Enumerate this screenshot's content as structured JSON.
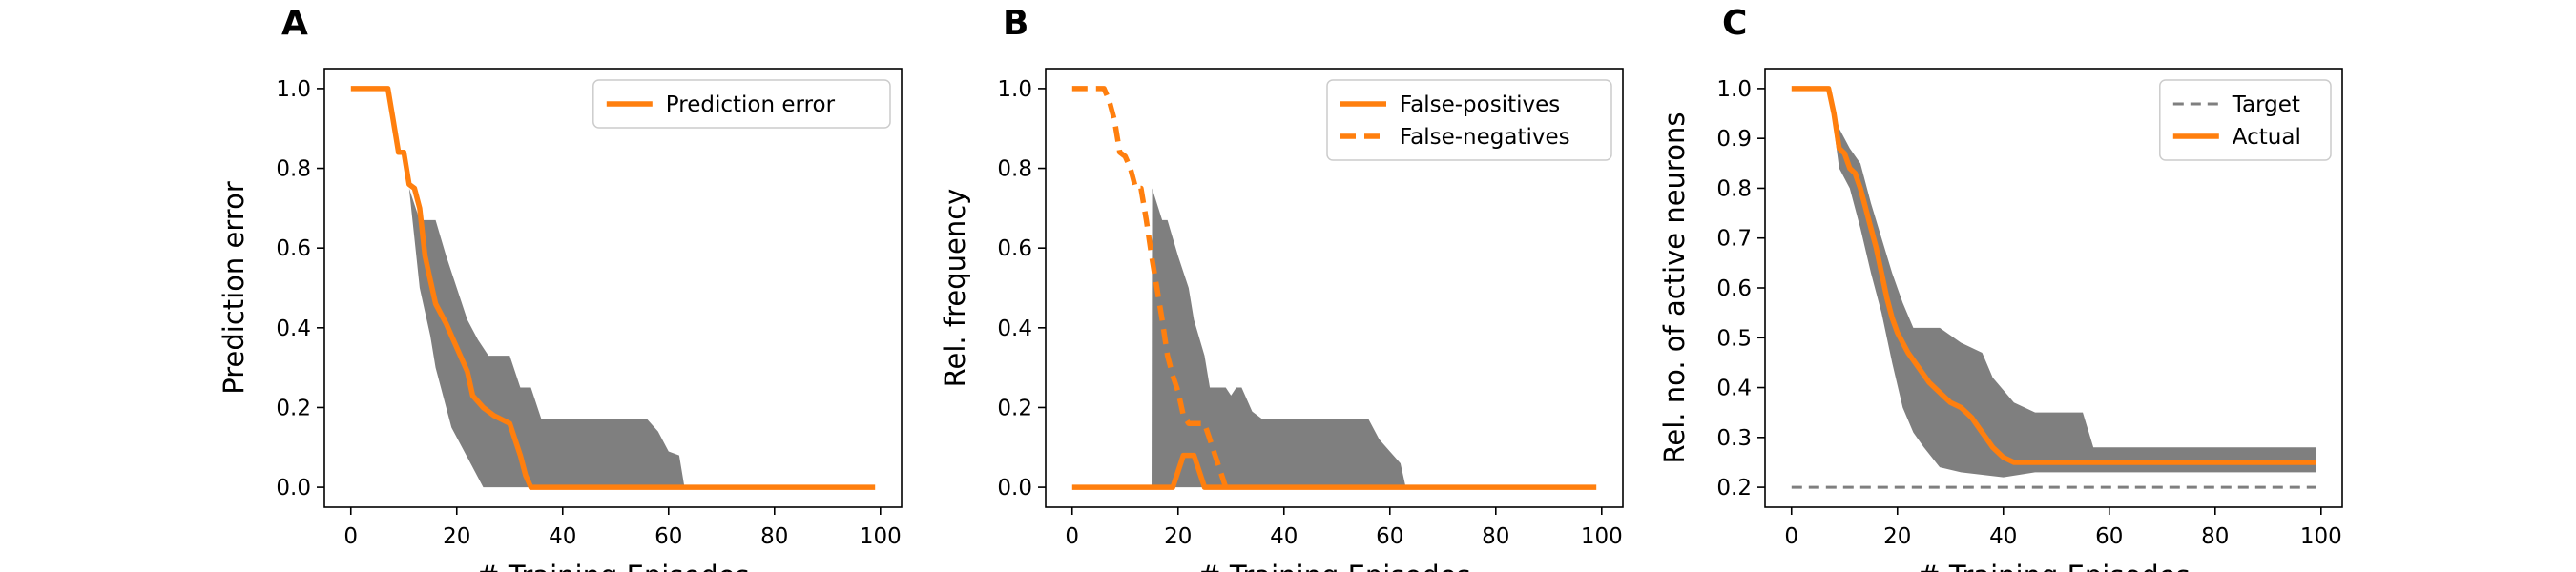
{
  "chart_data": [
    {
      "panel_label": "A",
      "type": "line",
      "xlabel": "# Training Episodes",
      "ylabel": "Prediction error",
      "xlim": [
        -5,
        104
      ],
      "ylim": [
        -0.05,
        1.05
      ],
      "xticks": [
        0,
        20,
        40,
        60,
        80,
        100
      ],
      "yticks": [
        0.0,
        0.2,
        0.4,
        0.6,
        0.8,
        1.0
      ],
      "ytick_decimals": 1,
      "legend_position": "upper-right",
      "bands": [
        {
          "color": "#7f7f7f",
          "upper": [
            [
              0,
              1.0
            ],
            [
              7,
              1.0
            ],
            [
              9,
              0.84
            ],
            [
              11,
              0.75
            ],
            [
              13,
              0.67
            ],
            [
              16,
              0.67
            ],
            [
              18,
              0.58
            ],
            [
              20,
              0.5
            ],
            [
              22,
              0.42
            ],
            [
              24,
              0.37
            ],
            [
              26,
              0.33
            ],
            [
              30,
              0.33
            ],
            [
              32,
              0.25
            ],
            [
              34,
              0.25
            ],
            [
              36,
              0.17
            ],
            [
              56,
              0.17
            ],
            [
              58,
              0.14
            ],
            [
              60,
              0.09
            ],
            [
              62,
              0.08
            ],
            [
              63,
              0.0
            ],
            [
              99,
              0.0
            ]
          ],
          "lower": [
            [
              0,
              1.0
            ],
            [
              7,
              1.0
            ],
            [
              9,
              0.84
            ],
            [
              11,
              0.75
            ],
            [
              13,
              0.5
            ],
            [
              15,
              0.38
            ],
            [
              16,
              0.3
            ],
            [
              17,
              0.25
            ],
            [
              19,
              0.15
            ],
            [
              21,
              0.1
            ],
            [
              23,
              0.05
            ],
            [
              25,
              0.0
            ],
            [
              99,
              0.0
            ]
          ]
        }
      ],
      "series": [
        {
          "name": "Prediction error",
          "color": "#ff7f0e",
          "dash": "solid",
          "points": [
            [
              0,
              1.0
            ],
            [
              7,
              1.0
            ],
            [
              8,
              0.92
            ],
            [
              9,
              0.84
            ],
            [
              10,
              0.84
            ],
            [
              11,
              0.76
            ],
            [
              12,
              0.75
            ],
            [
              13,
              0.7
            ],
            [
              14,
              0.58
            ],
            [
              15,
              0.52
            ],
            [
              16,
              0.46
            ],
            [
              18,
              0.41
            ],
            [
              20,
              0.35
            ],
            [
              22,
              0.29
            ],
            [
              23,
              0.23
            ],
            [
              25,
              0.2
            ],
            [
              27,
              0.18
            ],
            [
              30,
              0.16
            ],
            [
              32,
              0.08
            ],
            [
              33,
              0.03
            ],
            [
              34,
              0.0
            ],
            [
              99,
              0.0
            ]
          ]
        }
      ]
    },
    {
      "panel_label": "B",
      "type": "line",
      "xlabel": "# Training Episodes",
      "ylabel": "Rel. frequency",
      "xlim": [
        -5,
        104
      ],
      "ylim": [
        -0.05,
        1.05
      ],
      "xticks": [
        0,
        20,
        40,
        60,
        80,
        100
      ],
      "yticks": [
        0.0,
        0.2,
        0.4,
        0.6,
        0.8,
        1.0
      ],
      "ytick_decimals": 1,
      "legend_position": "upper-right",
      "bands": [
        {
          "color": "#7f7f7f",
          "upper": [
            [
              0,
              0.0
            ],
            [
              15,
              0.0
            ],
            [
              15.1,
              0.75
            ],
            [
              17,
              0.67
            ],
            [
              18,
              0.67
            ],
            [
              20,
              0.58
            ],
            [
              22,
              0.5
            ],
            [
              23,
              0.42
            ],
            [
              25,
              0.33
            ],
            [
              26,
              0.25
            ],
            [
              29,
              0.25
            ],
            [
              30,
              0.23
            ],
            [
              31,
              0.25
            ],
            [
              32,
              0.25
            ],
            [
              34,
              0.19
            ],
            [
              36,
              0.17
            ],
            [
              56,
              0.17
            ],
            [
              58,
              0.12
            ],
            [
              60,
              0.09
            ],
            [
              62,
              0.06
            ],
            [
              63,
              0.0
            ],
            [
              99,
              0.0
            ]
          ],
          "lower": [
            [
              0,
              0.0
            ],
            [
              99,
              0.0
            ]
          ]
        }
      ],
      "series": [
        {
          "name": "False-positives",
          "color": "#ff7f0e",
          "dash": "solid",
          "points": [
            [
              0,
              0.0
            ],
            [
              19,
              0.0
            ],
            [
              20,
              0.04
            ],
            [
              21,
              0.08
            ],
            [
              23,
              0.08
            ],
            [
              24,
              0.04
            ],
            [
              25,
              0.0
            ],
            [
              99,
              0.0
            ]
          ]
        },
        {
          "name": "False-negatives",
          "color": "#ff7f0e",
          "dash": "dashed",
          "points": [
            [
              0,
              1.0
            ],
            [
              6,
              1.0
            ],
            [
              7,
              0.97
            ],
            [
              8,
              0.92
            ],
            [
              9,
              0.84
            ],
            [
              10,
              0.83
            ],
            [
              11,
              0.8
            ],
            [
              12,
              0.75
            ],
            [
              13,
              0.75
            ],
            [
              14,
              0.67
            ],
            [
              15,
              0.58
            ],
            [
              16,
              0.5
            ],
            [
              17,
              0.42
            ],
            [
              18,
              0.33
            ],
            [
              19,
              0.28
            ],
            [
              20,
              0.24
            ],
            [
              21,
              0.18
            ],
            [
              22,
              0.16
            ],
            [
              23,
              0.16
            ],
            [
              25,
              0.16
            ],
            [
              26,
              0.12
            ],
            [
              27,
              0.08
            ],
            [
              28,
              0.04
            ],
            [
              29,
              0.0
            ]
          ]
        }
      ]
    },
    {
      "panel_label": "C",
      "type": "line",
      "xlabel": "# Training Episodes",
      "ylabel": "Rel. no. of active neurons",
      "xlim": [
        -5,
        104
      ],
      "ylim": [
        0.16,
        1.04
      ],
      "xticks": [
        0,
        20,
        40,
        60,
        80,
        100
      ],
      "yticks": [
        0.2,
        0.3,
        0.4,
        0.5,
        0.6,
        0.7,
        0.8,
        0.9,
        1.0
      ],
      "ytick_decimals": 1,
      "legend_position": "upper-right",
      "bands": [
        {
          "color": "#7f7f7f",
          "upper": [
            [
              0,
              1.0
            ],
            [
              7,
              1.0
            ],
            [
              9,
              0.92
            ],
            [
              11,
              0.88
            ],
            [
              13,
              0.85
            ],
            [
              15,
              0.77
            ],
            [
              17,
              0.7
            ],
            [
              19,
              0.63
            ],
            [
              21,
              0.57
            ],
            [
              23,
              0.52
            ],
            [
              28,
              0.52
            ],
            [
              32,
              0.49
            ],
            [
              36,
              0.47
            ],
            [
              38,
              0.42
            ],
            [
              42,
              0.37
            ],
            [
              46,
              0.35
            ],
            [
              55,
              0.35
            ],
            [
              57,
              0.28
            ],
            [
              99,
              0.28
            ]
          ],
          "lower": [
            [
              0,
              1.0
            ],
            [
              7,
              1.0
            ],
            [
              9,
              0.84
            ],
            [
              11,
              0.8
            ],
            [
              13,
              0.72
            ],
            [
              15,
              0.63
            ],
            [
              17,
              0.55
            ],
            [
              19,
              0.45
            ],
            [
              21,
              0.36
            ],
            [
              23,
              0.31
            ],
            [
              25,
              0.28
            ],
            [
              28,
              0.24
            ],
            [
              32,
              0.23
            ],
            [
              36,
              0.225
            ],
            [
              40,
              0.22
            ],
            [
              43,
              0.225
            ],
            [
              46,
              0.23
            ],
            [
              50,
              0.23
            ],
            [
              55,
              0.23
            ],
            [
              57,
              0.23
            ],
            [
              99,
              0.23
            ]
          ]
        }
      ],
      "series": [
        {
          "name": "Target",
          "color": "#7f7f7f",
          "dash": "dashed",
          "thin": true,
          "points": [
            [
              0,
              0.2
            ],
            [
              99,
              0.2
            ]
          ]
        },
        {
          "name": "Actual",
          "color": "#ff7f0e",
          "dash": "solid",
          "points": [
            [
              0,
              1.0
            ],
            [
              7,
              1.0
            ],
            [
              8,
              0.95
            ],
            [
              9,
              0.88
            ],
            [
              10,
              0.87
            ],
            [
              11,
              0.84
            ],
            [
              12,
              0.83
            ],
            [
              13,
              0.8
            ],
            [
              14,
              0.76
            ],
            [
              15,
              0.72
            ],
            [
              16,
              0.68
            ],
            [
              17,
              0.63
            ],
            [
              18,
              0.58
            ],
            [
              19,
              0.54
            ],
            [
              20,
              0.51
            ],
            [
              21,
              0.49
            ],
            [
              22,
              0.47
            ],
            [
              24,
              0.44
            ],
            [
              26,
              0.41
            ],
            [
              28,
              0.39
            ],
            [
              30,
              0.37
            ],
            [
              32,
              0.36
            ],
            [
              34,
              0.34
            ],
            [
              36,
              0.31
            ],
            [
              38,
              0.28
            ],
            [
              40,
              0.26
            ],
            [
              42,
              0.25
            ],
            [
              99,
              0.25
            ]
          ]
        }
      ]
    }
  ]
}
